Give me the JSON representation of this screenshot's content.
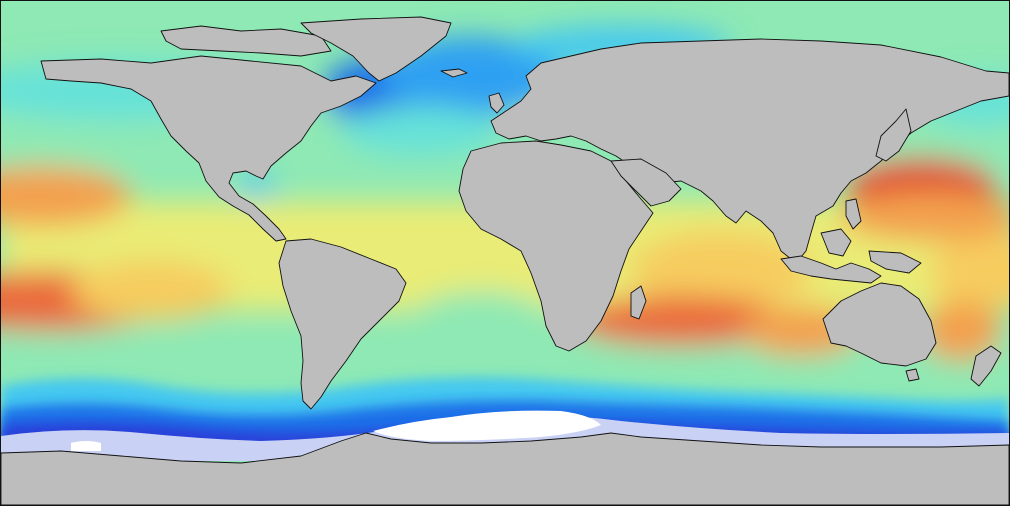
{
  "map": {
    "projection": "equirectangular",
    "coverage": "global",
    "colors": {
      "land": "#bdbdbd",
      "coastline": "#111111",
      "sea_ice_white": "#ffffff",
      "sea_ice_light": "#c9d2f5",
      "frame": "#111111"
    },
    "colormap": [
      "#2a3cd8",
      "#1f6fe8",
      "#2ea0f2",
      "#45c8f0",
      "#66e2d8",
      "#8ee9b4",
      "#bff08f",
      "#e9ec76",
      "#f6cc5f",
      "#f3a04d",
      "#ea6c3e",
      "#e04a33"
    ],
    "features": [
      "continents",
      "ocean-field",
      "antarctic-ice",
      "coastlines"
    ]
  }
}
